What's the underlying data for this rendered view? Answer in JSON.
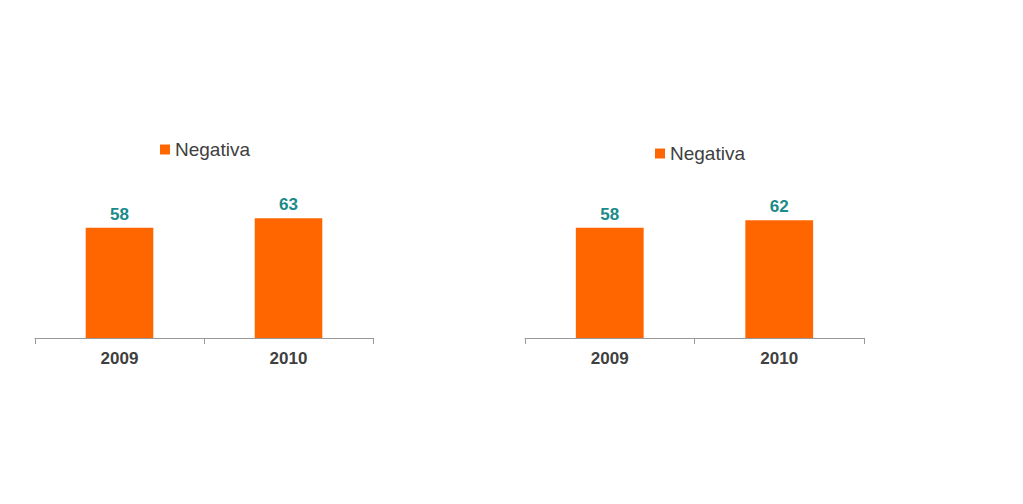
{
  "chart_data": [
    {
      "type": "bar",
      "categories": [
        "2009",
        "2010"
      ],
      "series": [
        {
          "name": "Negativa",
          "color": "#ff6600",
          "values": [
            58,
            63
          ]
        }
      ],
      "ylim": [
        0,
        100
      ],
      "grid": false,
      "legend": "top",
      "data_labels": true,
      "tick_labels": "x"
    },
    {
      "type": "bar",
      "categories": [
        "2009",
        "2010"
      ],
      "series": [
        {
          "name": "Negativa",
          "color": "#ff6600",
          "values": [
            58,
            62
          ]
        }
      ],
      "ylim": [
        0,
        100
      ],
      "grid": false,
      "legend": "top",
      "data_labels": true,
      "tick_labels": "x"
    }
  ]
}
